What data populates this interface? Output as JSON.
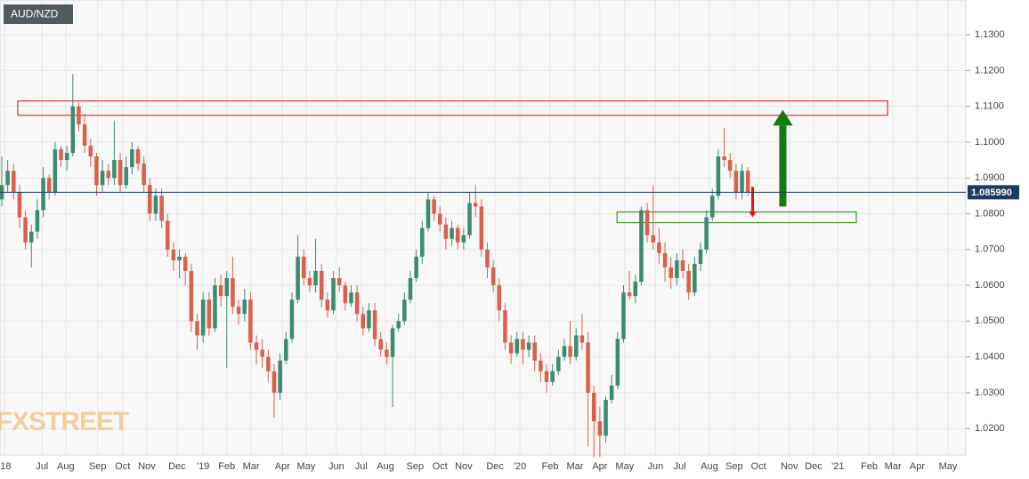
{
  "chart_data": {
    "type": "candlestick",
    "title": "AUD/NZD",
    "watermark": "FXSTREET",
    "up_color": "#3b8c6e",
    "down_color": "#d9604c",
    "grid": true,
    "ylim": [
      1.0126,
      1.1397
    ],
    "yticks": [
      {
        "value": 1.02,
        "label": "1.0200"
      },
      {
        "value": 1.03,
        "label": "1.0300"
      },
      {
        "value": 1.04,
        "label": "1.0400"
      },
      {
        "value": 1.05,
        "label": "1.0500"
      },
      {
        "value": 1.06,
        "label": "1.0600"
      },
      {
        "value": 1.07,
        "label": "1.0700"
      },
      {
        "value": 1.08,
        "label": "1.0800"
      },
      {
        "value": 1.09,
        "label": "1.0900"
      },
      {
        "value": 1.1,
        "label": "1.1000"
      },
      {
        "value": 1.11,
        "label": "1.1100"
      },
      {
        "value": 1.12,
        "label": "1.1200"
      },
      {
        "value": 1.13,
        "label": "1.1300"
      }
    ],
    "xlim": [
      -0.3,
      162.8
    ],
    "xticks": [
      {
        "value": 0.5,
        "label": "'18"
      },
      {
        "value": 6.8,
        "label": "Jul"
      },
      {
        "value": 10.8,
        "label": "Aug"
      },
      {
        "value": 16.2,
        "label": "Sep"
      },
      {
        "value": 20.4,
        "label": "Oct"
      },
      {
        "value": 24.5,
        "label": "Nov"
      },
      {
        "value": 29.6,
        "label": "Dec"
      },
      {
        "value": 34,
        "label": "'19"
      },
      {
        "value": 38,
        "label": "Feb"
      },
      {
        "value": 42.1,
        "label": "Mar"
      },
      {
        "value": 47.4,
        "label": "Apr"
      },
      {
        "value": 51.4,
        "label": "May"
      },
      {
        "value": 56.5,
        "label": "Jun"
      },
      {
        "value": 60.7,
        "label": "Jul"
      },
      {
        "value": 64.8,
        "label": "Aug"
      },
      {
        "value": 69.8,
        "label": "Sep"
      },
      {
        "value": 74,
        "label": "Oct"
      },
      {
        "value": 78,
        "label": "Nov"
      },
      {
        "value": 83.3,
        "label": "Dec"
      },
      {
        "value": 87.5,
        "label": "'20"
      },
      {
        "value": 92.6,
        "label": "Feb"
      },
      {
        "value": 96.8,
        "label": "Mar"
      },
      {
        "value": 101,
        "label": "Apr"
      },
      {
        "value": 105.2,
        "label": "May"
      },
      {
        "value": 110.4,
        "label": "Jun"
      },
      {
        "value": 114.5,
        "label": "Jul"
      },
      {
        "value": 119.5,
        "label": "Aug"
      },
      {
        "value": 123.7,
        "label": "Sep"
      },
      {
        "value": 127.8,
        "label": "Oct"
      },
      {
        "value": 133,
        "label": "Nov"
      },
      {
        "value": 137.1,
        "label": "Dec"
      },
      {
        "value": 141.2,
        "label": "'21"
      },
      {
        "value": 146.5,
        "label": "Feb"
      },
      {
        "value": 150.5,
        "label": "Mar"
      },
      {
        "value": 154.6,
        "label": "Apr"
      },
      {
        "value": 159.8,
        "label": "May"
      }
    ],
    "last_price": {
      "value": 1.08599,
      "label": "1.085990"
    },
    "zones": [
      {
        "xlim": [
          2.7,
          149.6
        ],
        "ylim": [
          1.1075,
          1.1115
        ],
        "color": "#e03030"
      },
      {
        "xlim": [
          103.9,
          144.3
        ],
        "ylim": [
          1.0775,
          1.0805
        ],
        "color": "#3a9a20"
      }
    ],
    "arrows": [
      {
        "x": 131.9,
        "from": 1.082,
        "to": 1.109,
        "color": "#157a10",
        "width": 8
      },
      {
        "x": 126.8,
        "from": 1.0875,
        "to": 1.079,
        "color": "#ee1111",
        "width": 3
      }
    ],
    "ohlc": [
      [
        1.084,
        1.096,
        1.082,
        1.088
      ],
      [
        1.088,
        1.095,
        1.086,
        1.092
      ],
      [
        1.092,
        1.094,
        1.084,
        1.086
      ],
      [
        1.086,
        1.088,
        1.076,
        1.079
      ],
      [
        1.079,
        1.081,
        1.07,
        1.072
      ],
      [
        1.072,
        1.077,
        1.065,
        1.075
      ],
      [
        1.075,
        1.084,
        1.073,
        1.081
      ],
      [
        1.081,
        1.093,
        1.079,
        1.09
      ],
      [
        1.09,
        1.091,
        1.084,
        1.086
      ],
      [
        1.086,
        1.1,
        1.085,
        1.098
      ],
      [
        1.098,
        1.099,
        1.093,
        1.095
      ],
      [
        1.095,
        1.099,
        1.092,
        1.097
      ],
      [
        1.097,
        1.119,
        1.096,
        1.11
      ],
      [
        1.11,
        1.111,
        1.103,
        1.105
      ],
      [
        1.105,
        1.108,
        1.097,
        1.099
      ],
      [
        1.099,
        1.101,
        1.093,
        1.096
      ],
      [
        1.096,
        1.097,
        1.085,
        1.088
      ],
      [
        1.088,
        1.095,
        1.086,
        1.092
      ],
      [
        1.092,
        1.094,
        1.088,
        1.09
      ],
      [
        1.09,
        1.106,
        1.088,
        1.095
      ],
      [
        1.095,
        1.097,
        1.086,
        1.088
      ],
      [
        1.088,
        1.096,
        1.087,
        1.093
      ],
      [
        1.093,
        1.1,
        1.091,
        1.098
      ],
      [
        1.098,
        1.099,
        1.092,
        1.094
      ],
      [
        1.094,
        1.096,
        1.086,
        1.088
      ],
      [
        1.088,
        1.09,
        1.078,
        1.08
      ],
      [
        1.08,
        1.087,
        1.078,
        1.085
      ],
      [
        1.085,
        1.087,
        1.076,
        1.078
      ],
      [
        1.078,
        1.08,
        1.068,
        1.07
      ],
      [
        1.07,
        1.072,
        1.064,
        1.067
      ],
      [
        1.067,
        1.07,
        1.062,
        1.068
      ],
      [
        1.068,
        1.069,
        1.06,
        1.064
      ],
      [
        1.064,
        1.066,
        1.047,
        1.05
      ],
      [
        1.05,
        1.052,
        1.042,
        1.046
      ],
      [
        1.046,
        1.058,
        1.044,
        1.056
      ],
      [
        1.056,
        1.058,
        1.046,
        1.048
      ],
      [
        1.048,
        1.062,
        1.047,
        1.06
      ],
      [
        1.06,
        1.063,
        1.054,
        1.057
      ],
      [
        1.057,
        1.064,
        1.037,
        1.062
      ],
      [
        1.062,
        1.068,
        1.052,
        1.054
      ],
      [
        1.054,
        1.056,
        1.049,
        1.052
      ],
      [
        1.052,
        1.059,
        1.05,
        1.056
      ],
      [
        1.056,
        1.058,
        1.042,
        1.044
      ],
      [
        1.044,
        1.046,
        1.038,
        1.042
      ],
      [
        1.042,
        1.045,
        1.037,
        1.04
      ],
      [
        1.04,
        1.042,
        1.033,
        1.036
      ],
      [
        1.036,
        1.038,
        1.023,
        1.03
      ],
      [
        1.03,
        1.041,
        1.028,
        1.039
      ],
      [
        1.039,
        1.047,
        1.038,
        1.045
      ],
      [
        1.045,
        1.058,
        1.044,
        1.056
      ],
      [
        1.056,
        1.074,
        1.055,
        1.068
      ],
      [
        1.068,
        1.07,
        1.06,
        1.062
      ],
      [
        1.062,
        1.064,
        1.058,
        1.06
      ],
      [
        1.06,
        1.073,
        1.058,
        1.064
      ],
      [
        1.064,
        1.066,
        1.054,
        1.056
      ],
      [
        1.056,
        1.058,
        1.051,
        1.053
      ],
      [
        1.053,
        1.064,
        1.052,
        1.062
      ],
      [
        1.062,
        1.065,
        1.058,
        1.06
      ],
      [
        1.06,
        1.061,
        1.053,
        1.055
      ],
      [
        1.055,
        1.06,
        1.054,
        1.058
      ],
      [
        1.058,
        1.06,
        1.05,
        1.052
      ],
      [
        1.052,
        1.054,
        1.046,
        1.048
      ],
      [
        1.048,
        1.055,
        1.047,
        1.053
      ],
      [
        1.053,
        1.055,
        1.043,
        1.045
      ],
      [
        1.045,
        1.047,
        1.04,
        1.042
      ],
      [
        1.042,
        1.044,
        1.038,
        1.04
      ],
      [
        1.04,
        1.049,
        1.026,
        1.048
      ],
      [
        1.048,
        1.052,
        1.047,
        1.05
      ],
      [
        1.05,
        1.058,
        1.049,
        1.056
      ],
      [
        1.056,
        1.064,
        1.055,
        1.062
      ],
      [
        1.062,
        1.07,
        1.061,
        1.068
      ],
      [
        1.068,
        1.078,
        1.066,
        1.076
      ],
      [
        1.076,
        1.086,
        1.075,
        1.084
      ],
      [
        1.084,
        1.085,
        1.078,
        1.08
      ],
      [
        1.08,
        1.082,
        1.075,
        1.077
      ],
      [
        1.077,
        1.079,
        1.07,
        1.073
      ],
      [
        1.073,
        1.078,
        1.071,
        1.076
      ],
      [
        1.076,
        1.077,
        1.07,
        1.072
      ],
      [
        1.072,
        1.076,
        1.07,
        1.074
      ],
      [
        1.074,
        1.086,
        1.073,
        1.083
      ],
      [
        1.083,
        1.088,
        1.079,
        1.082
      ],
      [
        1.082,
        1.084,
        1.068,
        1.07
      ],
      [
        1.07,
        1.072,
        1.062,
        1.065
      ],
      [
        1.065,
        1.067,
        1.058,
        1.06
      ],
      [
        1.06,
        1.062,
        1.05,
        1.053
      ],
      [
        1.053,
        1.055,
        1.042,
        1.044
      ],
      [
        1.044,
        1.046,
        1.038,
        1.041
      ],
      [
        1.041,
        1.047,
        1.04,
        1.045
      ],
      [
        1.045,
        1.047,
        1.038,
        1.042
      ],
      [
        1.042,
        1.046,
        1.04,
        1.044
      ],
      [
        1.044,
        1.046,
        1.036,
        1.039
      ],
      [
        1.039,
        1.041,
        1.033,
        1.036
      ],
      [
        1.036,
        1.038,
        1.03,
        1.033
      ],
      [
        1.033,
        1.038,
        1.032,
        1.036
      ],
      [
        1.036,
        1.042,
        1.035,
        1.04
      ],
      [
        1.04,
        1.045,
        1.039,
        1.043
      ],
      [
        1.043,
        1.05,
        1.038,
        1.04
      ],
      [
        1.04,
        1.048,
        1.039,
        1.046
      ],
      [
        1.046,
        1.052,
        1.042,
        1.044
      ],
      [
        1.044,
        1.047,
        1.015,
        1.03
      ],
      [
        1.03,
        1.032,
        1.012,
        1.022
      ],
      [
        1.022,
        1.026,
        1.012,
        1.018
      ],
      [
        1.018,
        1.029,
        1.016,
        1.028
      ],
      [
        1.028,
        1.035,
        1.027,
        1.032
      ],
      [
        1.032,
        1.047,
        1.031,
        1.045
      ],
      [
        1.045,
        1.06,
        1.044,
        1.058
      ],
      [
        1.058,
        1.064,
        1.056,
        1.057
      ],
      [
        1.057,
        1.063,
        1.055,
        1.061
      ],
      [
        1.061,
        1.082,
        1.06,
        1.081
      ],
      [
        1.081,
        1.083,
        1.072,
        1.074
      ],
      [
        1.074,
        1.088,
        1.07,
        1.072
      ],
      [
        1.072,
        1.076,
        1.066,
        1.069
      ],
      [
        1.069,
        1.072,
        1.061,
        1.065
      ],
      [
        1.065,
        1.068,
        1.059,
        1.062
      ],
      [
        1.062,
        1.069,
        1.06,
        1.067
      ],
      [
        1.067,
        1.07,
        1.062,
        1.064
      ],
      [
        1.064,
        1.066,
        1.056,
        1.058
      ],
      [
        1.058,
        1.068,
        1.057,
        1.066
      ],
      [
        1.066,
        1.072,
        1.064,
        1.07
      ],
      [
        1.07,
        1.081,
        1.069,
        1.079
      ],
      [
        1.079,
        1.087,
        1.078,
        1.085
      ],
      [
        1.085,
        1.098,
        1.084,
        1.096
      ],
      [
        1.096,
        1.104,
        1.093,
        1.095
      ],
      [
        1.095,
        1.097,
        1.09,
        1.092
      ],
      [
        1.092,
        1.094,
        1.084,
        1.086
      ],
      [
        1.086,
        1.094,
        1.084,
        1.092
      ],
      [
        1.092,
        1.093,
        1.085,
        1.08599
      ]
    ]
  }
}
